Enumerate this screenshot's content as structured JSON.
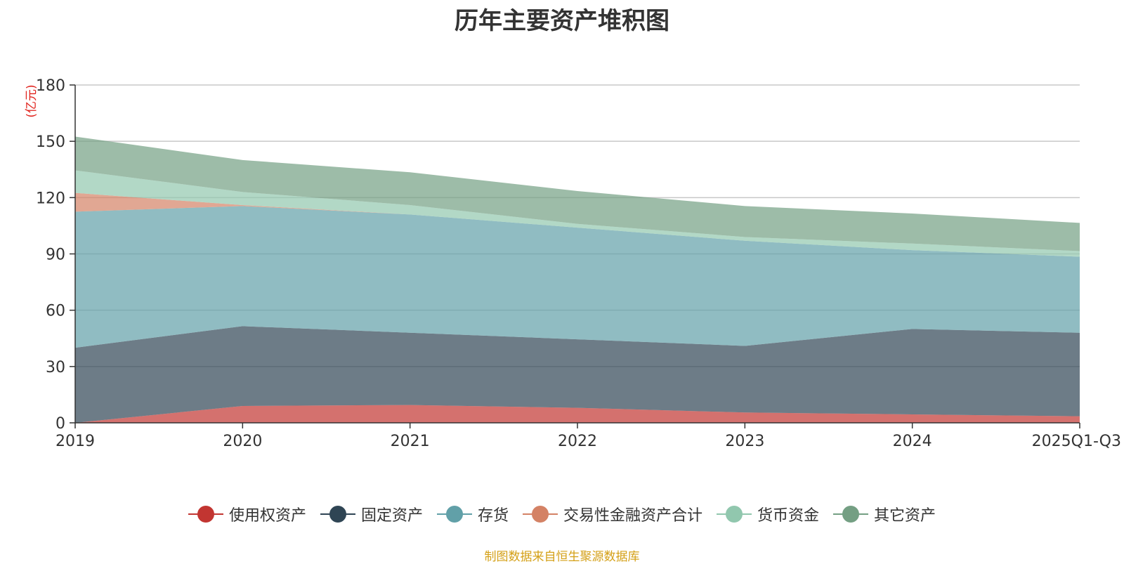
{
  "chart_data": {
    "type": "area",
    "stacked": true,
    "title": "历年主要资产堆积图",
    "ylabel": "(亿元)",
    "xlabel": "",
    "ylim": [
      0,
      180
    ],
    "yticks": [
      0,
      30,
      60,
      90,
      120,
      150,
      180
    ],
    "ytick_labels": [
      "0",
      "30",
      "60",
      "90",
      "120",
      "150",
      "180"
    ],
    "categories": [
      "2019",
      "2020",
      "2021",
      "2022",
      "2023",
      "2024",
      "2025Q1-Q3"
    ],
    "grid": true,
    "legend_position": "bottom-center",
    "series": [
      {
        "name": "使用权资产",
        "color": "#c23531",
        "values": [
          0,
          9,
          9.5,
          8,
          5.5,
          4.5,
          3.5
        ]
      },
      {
        "name": "固定资产",
        "color": "#2f4554",
        "values": [
          40,
          42.5,
          38.5,
          36.5,
          35.5,
          45.5,
          44.5
        ]
      },
      {
        "name": "存货",
        "color": "#61a0a8",
        "values": [
          72.5,
          64,
          63,
          59.5,
          56,
          42,
          40.5
        ]
      },
      {
        "name": "交易性金融资产合计",
        "color": "#d48265",
        "values": [
          10,
          0.5,
          0,
          0,
          0,
          0,
          0
        ]
      },
      {
        "name": "货币资金",
        "color": "#91c7ae",
        "values": [
          12,
          7,
          5,
          2,
          2,
          3.5,
          3
        ]
      },
      {
        "name": "其它资产",
        "color": "#749f83",
        "values": [
          18,
          17,
          17.5,
          17.5,
          16.5,
          16,
          15
        ]
      }
    ]
  },
  "source_note": "制图数据来自恒生聚源数据库"
}
